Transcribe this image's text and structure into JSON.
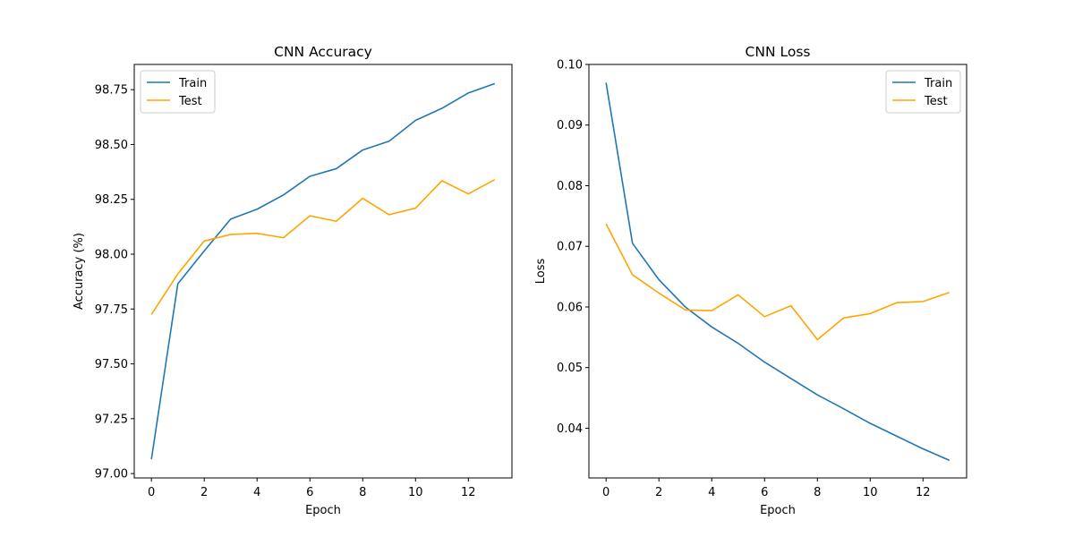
{
  "colors": {
    "train": "#1f77b4",
    "test": "#ffa500"
  },
  "chart_data": [
    {
      "type": "line",
      "title": "CNN Accuracy",
      "xlabel": "Epoch",
      "ylabel": "Accuracy (%)",
      "x": [
        0,
        1,
        2,
        3,
        4,
        5,
        6,
        7,
        8,
        9,
        10,
        11,
        12,
        13
      ],
      "xlim": [
        -0.65,
        13.65
      ],
      "ylim": [
        96.98,
        98.865
      ],
      "xticks": [
        0,
        2,
        4,
        6,
        8,
        10,
        12
      ],
      "xtick_labels": [
        "0",
        "2",
        "4",
        "6",
        "8",
        "10",
        "12"
      ],
      "yticks": [
        97.0,
        97.25,
        97.5,
        97.75,
        98.0,
        98.25,
        98.5,
        98.75
      ],
      "ytick_labels": [
        "97.00",
        "97.25",
        "97.50",
        "97.75",
        "98.00",
        "98.25",
        "98.50",
        "98.75"
      ],
      "legend": "top-left",
      "grid": false,
      "series": [
        {
          "name": "Train",
          "color": "#1f77b4",
          "values": [
            97.065,
            97.865,
            98.015,
            98.16,
            98.205,
            98.27,
            98.355,
            98.39,
            98.475,
            98.515,
            98.61,
            98.665,
            98.735,
            98.778
          ]
        },
        {
          "name": "Test",
          "color": "#ffa500",
          "values": [
            97.725,
            97.91,
            98.06,
            98.09,
            98.095,
            98.075,
            98.175,
            98.15,
            98.255,
            98.18,
            98.21,
            98.335,
            98.275,
            98.34
          ]
        }
      ]
    },
    {
      "type": "line",
      "title": "CNN Loss",
      "xlabel": "Epoch",
      "ylabel": "Loss",
      "x": [
        0,
        1,
        2,
        3,
        4,
        5,
        6,
        7,
        8,
        9,
        10,
        11,
        12,
        13
      ],
      "xlim": [
        -0.65,
        13.65
      ],
      "ylim": [
        0.0318,
        0.1
      ],
      "xticks": [
        0,
        2,
        4,
        6,
        8,
        10,
        12
      ],
      "xtick_labels": [
        "0",
        "2",
        "4",
        "6",
        "8",
        "10",
        "12"
      ],
      "yticks": [
        0.04,
        0.05,
        0.06,
        0.07,
        0.08,
        0.09,
        0.1
      ],
      "ytick_labels": [
        "0.04",
        "0.05",
        "0.06",
        "0.07",
        "0.08",
        "0.09",
        "0.10"
      ],
      "legend": "top-right",
      "grid": false,
      "series": [
        {
          "name": "Train",
          "color": "#1f77b4",
          "values": [
            0.097,
            0.0705,
            0.0645,
            0.06,
            0.0567,
            0.054,
            0.0509,
            0.0482,
            0.0455,
            0.0432,
            0.0408,
            0.0387,
            0.0366,
            0.0347
          ]
        },
        {
          "name": "Test",
          "color": "#ffa500",
          "values": [
            0.0737,
            0.0653,
            0.0623,
            0.0595,
            0.0594,
            0.062,
            0.0584,
            0.0602,
            0.0546,
            0.0582,
            0.0589,
            0.0607,
            0.0609,
            0.0624
          ]
        }
      ]
    }
  ]
}
